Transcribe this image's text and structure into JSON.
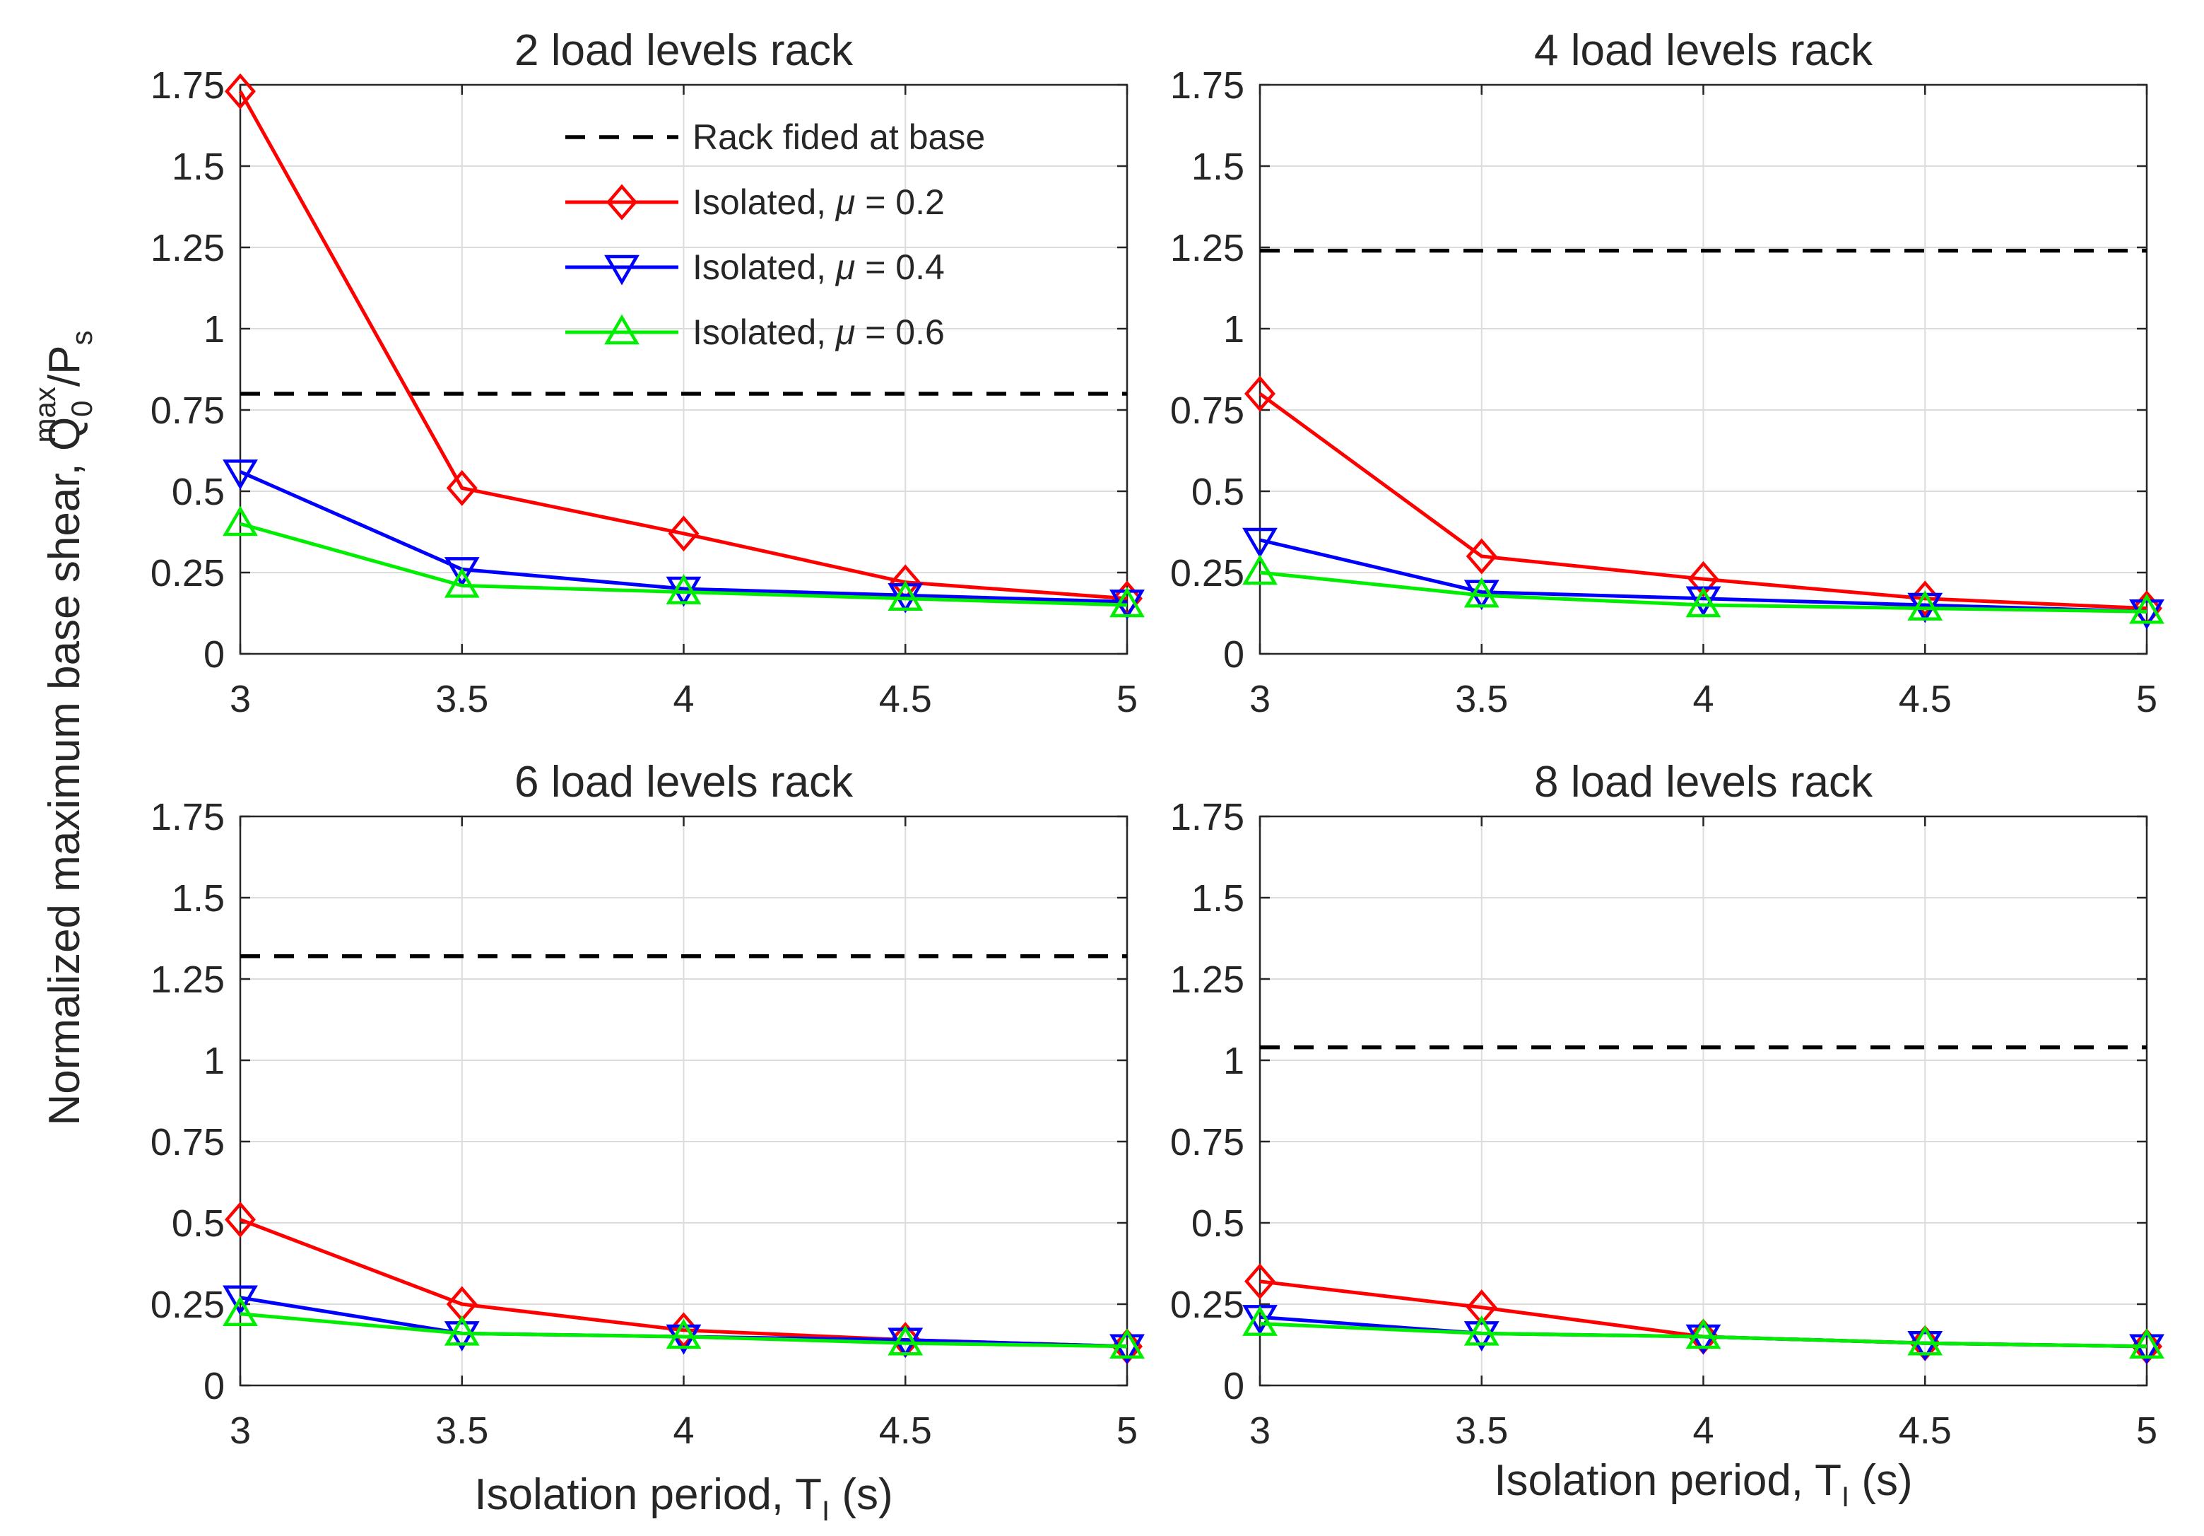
{
  "chart_data": {
    "type": "line",
    "ylabel": "Normalized maximum base shear, Q_0^max/P_s",
    "ylabel_parts": {
      "base": "Normalized maximum base shear, Q",
      "sub": "0",
      "sup": "max",
      "rest": "/P",
      "sub2": "s"
    },
    "xlabel": "Isolation period, T_I (s)",
    "xlabel_parts": {
      "base": "Isolation period, T",
      "sub": "I",
      "rest": " (s)"
    },
    "x": [
      3,
      3.5,
      4,
      4.5,
      5
    ],
    "x_ticks": [
      "3",
      "3.5",
      "4",
      "4.5",
      "5"
    ],
    "y_ticks": [
      "0",
      "0.25",
      "0.5",
      "0.75",
      "1",
      "1.25",
      "1.5",
      "1.75"
    ],
    "xlim": [
      3,
      5
    ],
    "ylim": [
      0,
      1.75
    ],
    "grid": true,
    "legend_location": "top-right of first panel",
    "legend": [
      {
        "label": "Rack fided at base",
        "symbol": "μ",
        "color": "#000000",
        "style": "dashed",
        "marker": "none"
      },
      {
        "label_prefix": "Isolated, ",
        "symbol": "μ",
        "label_suffix": " = 0.2",
        "color": "#ff0000",
        "style": "solid",
        "marker": "diamond"
      },
      {
        "label_prefix": "Isolated, ",
        "symbol": "μ",
        "label_suffix": " = 0.4",
        "color": "#0000ff",
        "style": "solid",
        "marker": "triangle-down"
      },
      {
        "label_prefix": "Isolated, ",
        "symbol": "μ",
        "label_suffix": " = 0.6",
        "color": "#00ee00",
        "style": "solid",
        "marker": "triangle-up"
      }
    ],
    "panels": [
      {
        "title": "2 load levels rack",
        "fixed_base": 0.8,
        "series": [
          {
            "values": [
              1.73,
              0.51,
              0.37,
              0.22,
              0.17
            ]
          },
          {
            "values": [
              0.56,
              0.26,
              0.2,
              0.18,
              0.16
            ]
          },
          {
            "values": [
              0.4,
              0.21,
              0.19,
              0.17,
              0.15
            ]
          }
        ]
      },
      {
        "title": "4 load levels rack",
        "fixed_base": 1.24,
        "series": [
          {
            "values": [
              0.8,
              0.3,
              0.23,
              0.17,
              0.14
            ]
          },
          {
            "values": [
              0.35,
              0.19,
              0.17,
              0.15,
              0.13
            ]
          },
          {
            "values": [
              0.25,
              0.18,
              0.15,
              0.14,
              0.13
            ]
          }
        ]
      },
      {
        "title": "6 load levels rack",
        "fixed_base": 1.32,
        "series": [
          {
            "values": [
              0.51,
              0.25,
              0.17,
              0.14,
              0.12
            ]
          },
          {
            "values": [
              0.27,
              0.16,
              0.15,
              0.14,
              0.12
            ]
          },
          {
            "values": [
              0.22,
              0.16,
              0.15,
              0.13,
              0.12
            ]
          }
        ]
      },
      {
        "title": "8 load levels rack",
        "fixed_base": 1.04,
        "series": [
          {
            "values": [
              0.32,
              0.24,
              0.15,
              0.13,
              0.12
            ]
          },
          {
            "values": [
              0.21,
              0.16,
              0.15,
              0.13,
              0.12
            ]
          },
          {
            "values": [
              0.19,
              0.16,
              0.15,
              0.13,
              0.12
            ]
          }
        ]
      }
    ]
  }
}
